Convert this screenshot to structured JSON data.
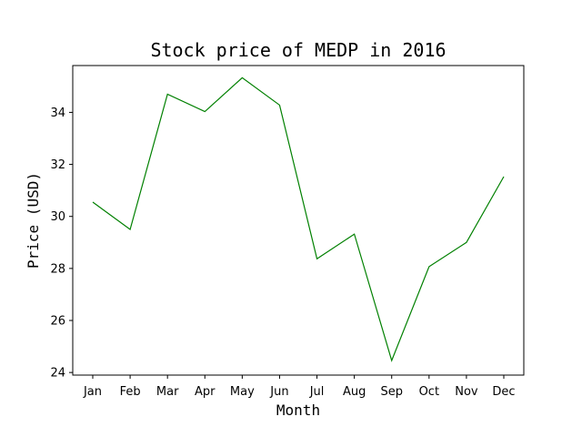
{
  "chart_data": {
    "type": "line",
    "title": "Stock price of MEDP in 2016",
    "xlabel": "Month",
    "ylabel": "Price (USD)",
    "categories": [
      "Jan",
      "Feb",
      "Mar",
      "Apr",
      "May",
      "Jun",
      "Jul",
      "Aug",
      "Sep",
      "Oct",
      "Nov",
      "Dec"
    ],
    "series": [
      {
        "values": [
          30.55,
          29.5,
          34.7,
          34.03,
          35.33,
          34.28,
          28.37,
          29.32,
          24.46,
          28.07,
          29.0,
          31.53
        ],
        "color": "#008000"
      }
    ],
    "ylim": [
      23.9,
      35.8
    ],
    "yticks": [
      24,
      26,
      28,
      30,
      32,
      34
    ],
    "grid": false,
    "legend": "none"
  }
}
